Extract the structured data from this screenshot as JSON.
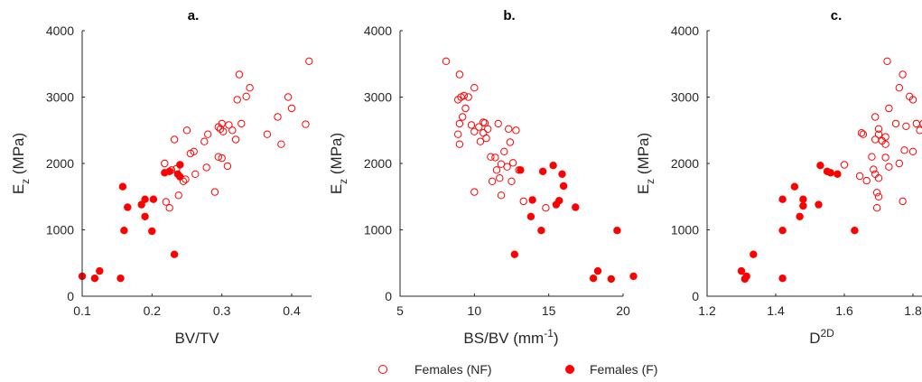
{
  "legend": {
    "nf_label": "Females (NF)",
    "f_label": "Females (F)"
  },
  "colors": {
    "marker": "#ff0000",
    "axis": "#262626"
  },
  "chart_data": [
    {
      "type": "scatter",
      "title": "a.",
      "xlabel_main": "BV/TV",
      "xlabel_sup": "",
      "xlabel_tail": "",
      "ylabel_main": "E",
      "ylabel_sub": "z",
      "ylabel_tail": " (MPa)",
      "xlim": [
        0.1,
        0.43
      ],
      "ylim": [
        0,
        4000
      ],
      "xticks": [
        0.1,
        0.2,
        0.3,
        0.4
      ],
      "xtick_labels": [
        "0.1",
        "0.2",
        "0.3",
        "0.4"
      ],
      "yticks": [
        0,
        1000,
        2000,
        3000,
        4000
      ],
      "ytick_labels": [
        "0",
        "1000",
        "2000",
        "3000",
        "4000"
      ],
      "series": [
        {
          "name": "Females (NF)",
          "marker": "open-circle",
          "points": [
            [
              0.425,
              3540
            ],
            [
              0.325,
              3340
            ],
            [
              0.34,
              3140
            ],
            [
              0.335,
              3010
            ],
            [
              0.395,
              3000
            ],
            [
              0.322,
              2960
            ],
            [
              0.4,
              2830
            ],
            [
              0.38,
              2700
            ],
            [
              0.42,
              2590
            ],
            [
              0.328,
              2600
            ],
            [
              0.3,
              2600
            ],
            [
              0.31,
              2580
            ],
            [
              0.295,
              2550
            ],
            [
              0.298,
              2520
            ],
            [
              0.302,
              2480
            ],
            [
              0.315,
              2500
            ],
            [
              0.365,
              2440
            ],
            [
              0.28,
              2440
            ],
            [
              0.25,
              2500
            ],
            [
              0.232,
              2360
            ],
            [
              0.32,
              2360
            ],
            [
              0.275,
              2330
            ],
            [
              0.385,
              2290
            ],
            [
              0.26,
              2180
            ],
            [
              0.255,
              2150
            ],
            [
              0.295,
              2100
            ],
            [
              0.3,
              2080
            ],
            [
              0.218,
              2000
            ],
            [
              0.228,
              1900
            ],
            [
              0.308,
              1960
            ],
            [
              0.278,
              1940
            ],
            [
              0.235,
              1920
            ],
            [
              0.262,
              1840
            ],
            [
              0.248,
              1760
            ],
            [
              0.245,
              1730
            ],
            [
              0.238,
              1520
            ],
            [
              0.29,
              1570
            ],
            [
              0.22,
              1420
            ],
            [
              0.225,
              1330
            ]
          ]
        },
        {
          "name": "Females (F)",
          "marker": "filled-circle",
          "points": [
            [
              0.158,
              1650
            ],
            [
              0.24,
              1980
            ],
            [
              0.225,
              1880
            ],
            [
              0.218,
              1860
            ],
            [
              0.237,
              1840
            ],
            [
              0.24,
              1800
            ],
            [
              0.202,
              1460
            ],
            [
              0.19,
              1460
            ],
            [
              0.185,
              1380
            ],
            [
              0.165,
              1340
            ],
            [
              0.19,
              1200
            ],
            [
              0.16,
              990
            ],
            [
              0.2,
              980
            ],
            [
              0.232,
              630
            ],
            [
              0.125,
              380
            ],
            [
              0.1,
              300
            ],
            [
              0.118,
              270
            ],
            [
              0.155,
              270
            ]
          ]
        }
      ]
    },
    {
      "type": "scatter",
      "title": "b.",
      "xlabel_main": "BS/BV (mm",
      "xlabel_sup": "-1",
      "xlabel_tail": ")",
      "ylabel_main": "E",
      "ylabel_sub": "z",
      "ylabel_tail": " (MPa)",
      "xlim": [
        5,
        21
      ],
      "ylim": [
        0,
        4000
      ],
      "xticks": [
        5,
        10,
        15,
        20
      ],
      "xtick_labels": [
        "5",
        "10",
        "15",
        "20"
      ],
      "yticks": [
        0,
        1000,
        2000,
        3000,
        4000
      ],
      "ytick_labels": [
        "0",
        "1000",
        "2000",
        "3000",
        "4000"
      ],
      "series": [
        {
          "name": "Females (NF)",
          "marker": "open-circle",
          "points": [
            [
              8.1,
              3540
            ],
            [
              9.0,
              3340
            ],
            [
              10.0,
              3140
            ],
            [
              9.3,
              3020
            ],
            [
              9.1,
              3000
            ],
            [
              9.6,
              3000
            ],
            [
              8.9,
              2960
            ],
            [
              9.4,
              2830
            ],
            [
              9.2,
              2700
            ],
            [
              10.6,
              2620
            ],
            [
              10.7,
              2610
            ],
            [
              9.0,
              2600
            ],
            [
              9.8,
              2580
            ],
            [
              11.6,
              2600
            ],
            [
              10.3,
              2550
            ],
            [
              10.9,
              2520
            ],
            [
              12.3,
              2520
            ],
            [
              10.0,
              2480
            ],
            [
              10.6,
              2460
            ],
            [
              8.9,
              2440
            ],
            [
              12.8,
              2500
            ],
            [
              10.8,
              2380
            ],
            [
              10.4,
              2330
            ],
            [
              12.4,
              2320
            ],
            [
              9.0,
              2290
            ],
            [
              12.0,
              2180
            ],
            [
              11.1,
              2100
            ],
            [
              11.4,
              2090
            ],
            [
              12.6,
              2010
            ],
            [
              11.8,
              1990
            ],
            [
              12.2,
              1950
            ],
            [
              11.5,
              1900
            ],
            [
              13.0,
              1900
            ],
            [
              11.7,
              1780
            ],
            [
              12.5,
              1730
            ],
            [
              11.2,
              1730
            ],
            [
              10.0,
              1570
            ],
            [
              11.8,
              1520
            ],
            [
              13.3,
              1430
            ],
            [
              14.8,
              1330
            ]
          ]
        },
        {
          "name": "Females (F)",
          "marker": "filled-circle",
          "points": [
            [
              15.3,
              1970
            ],
            [
              14.6,
              1880
            ],
            [
              13.1,
              1900
            ],
            [
              15.9,
              1840
            ],
            [
              15.7,
              1440
            ],
            [
              16.0,
              1660
            ],
            [
              15.5,
              1380
            ],
            [
              16.8,
              1340
            ],
            [
              13.9,
              1450
            ],
            [
              13.8,
              1200
            ],
            [
              14.5,
              990
            ],
            [
              19.6,
              990
            ],
            [
              12.7,
              630
            ],
            [
              18.3,
              380
            ],
            [
              20.7,
              300
            ],
            [
              18.0,
              270
            ],
            [
              19.2,
              260
            ]
          ]
        }
      ]
    },
    {
      "type": "scatter",
      "title": "c.",
      "xlabel_main": "D",
      "xlabel_sup": "2D",
      "xlabel_tail": "",
      "ylabel_main": "E",
      "ylabel_sub": "z",
      "ylabel_tail": " (MPa)",
      "xlim": [
        1.2,
        1.85
      ],
      "ylim": [
        0,
        4000
      ],
      "xticks": [
        1.2,
        1.4,
        1.6,
        1.8
      ],
      "xtick_labels": [
        "1.2",
        "1.4",
        "1.6",
        "1.8"
      ],
      "yticks": [
        0,
        1000,
        2000,
        3000,
        4000
      ],
      "ytick_labels": [
        "0",
        "1000",
        "2000",
        "3000",
        "4000"
      ],
      "series": [
        {
          "name": "Females (NF)",
          "marker": "open-circle",
          "points": [
            [
              1.725,
              3540
            ],
            [
              1.77,
              3340
            ],
            [
              1.76,
              3140
            ],
            [
              1.79,
              3010
            ],
            [
              1.8,
              2960
            ],
            [
              1.85,
              3000
            ],
            [
              1.73,
              2830
            ],
            [
              1.69,
              2700
            ],
            [
              1.75,
              2600
            ],
            [
              1.81,
              2600
            ],
            [
              1.83,
              2600
            ],
            [
              1.84,
              2620
            ],
            [
              1.78,
              2560
            ],
            [
              1.7,
              2520
            ],
            [
              1.82,
              2500
            ],
            [
              1.7,
              2440
            ],
            [
              1.72,
              2400
            ],
            [
              1.65,
              2460
            ],
            [
              1.655,
              2440
            ],
            [
              1.69,
              2360
            ],
            [
              1.71,
              2340
            ],
            [
              1.72,
              2290
            ],
            [
              1.775,
              2200
            ],
            [
              1.8,
              2180
            ],
            [
              1.68,
              2100
            ],
            [
              1.72,
              2090
            ],
            [
              1.6,
              1980
            ],
            [
              1.76,
              2000
            ],
            [
              1.73,
              1950
            ],
            [
              1.685,
              1910
            ],
            [
              1.69,
              1840
            ],
            [
              1.645,
              1810
            ],
            [
              1.7,
              1780
            ],
            [
              1.665,
              1740
            ],
            [
              1.695,
              1560
            ],
            [
              1.7,
              1500
            ],
            [
              1.77,
              1430
            ],
            [
              1.695,
              1330
            ]
          ]
        },
        {
          "name": "Females (F)",
          "marker": "filled-circle",
          "points": [
            [
              1.53,
              1970
            ],
            [
              1.55,
              1880
            ],
            [
              1.56,
              1860
            ],
            [
              1.58,
              1840
            ],
            [
              1.455,
              1650
            ],
            [
              1.42,
              1460
            ],
            [
              1.48,
              1460
            ],
            [
              1.48,
              1360
            ],
            [
              1.525,
              1380
            ],
            [
              1.47,
              1200
            ],
            [
              1.42,
              990
            ],
            [
              1.63,
              990
            ],
            [
              1.335,
              630
            ],
            [
              1.3,
              380
            ],
            [
              1.315,
              300
            ],
            [
              1.31,
              260
            ],
            [
              1.42,
              270
            ]
          ]
        }
      ]
    }
  ]
}
